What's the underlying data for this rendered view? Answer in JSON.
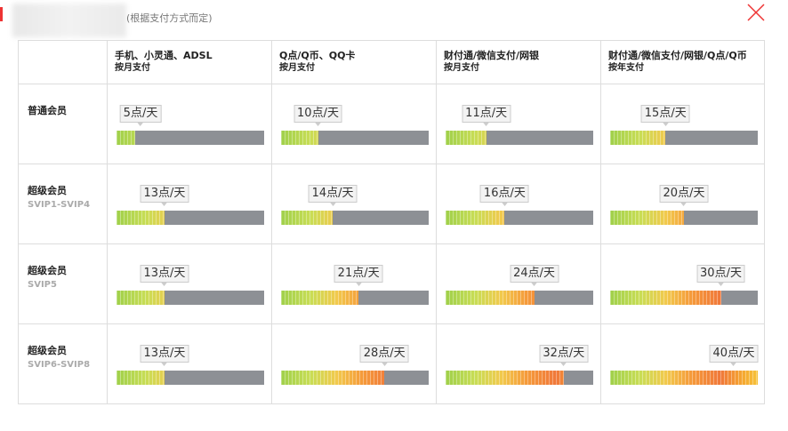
{
  "header": {
    "subtitle": "(根据支付方式而定)"
  },
  "table": {
    "columns": [
      {
        "name": "手机、小灵通、ADSL",
        "payment": "按月支付"
      },
      {
        "name": "Q点/Q币、QQ卡",
        "payment": "按月支付"
      },
      {
        "name": "财付通/微信支付/网银",
        "payment": "按月支付"
      },
      {
        "name": "财付通/微信支付/网银/Q点/Q币",
        "payment": "按年支付"
      }
    ],
    "rows": [
      {
        "name": "普通会员",
        "cells": [
          {
            "value": 5,
            "label": "5点/天"
          },
          {
            "value": 10,
            "label": "10点/天"
          },
          {
            "value": 11,
            "label": "11点/天"
          },
          {
            "value": 15,
            "label": "15点/天"
          }
        ]
      },
      {
        "name": "超级会员",
        "level": "SVIP1-SVIP4",
        "cells": [
          {
            "value": 13,
            "label": "13点/天"
          },
          {
            "value": 14,
            "label": "14点/天"
          },
          {
            "value": 16,
            "label": "16点/天"
          },
          {
            "value": 20,
            "label": "20点/天"
          }
        ]
      },
      {
        "name": "超级会员",
        "level": "SVIP5",
        "cells": [
          {
            "value": 13,
            "label": "13点/天"
          },
          {
            "value": 21,
            "label": "21点/天"
          },
          {
            "value": 24,
            "label": "24点/天"
          },
          {
            "value": 30,
            "label": "30点/天"
          }
        ]
      },
      {
        "name": "超级会员",
        "level": "SVIP6-SVIP8",
        "cells": [
          {
            "value": 13,
            "label": "13点/天"
          },
          {
            "value": 28,
            "label": "28点/天"
          },
          {
            "value": 32,
            "label": "32点/天"
          },
          {
            "value": 40,
            "label": "40点/天"
          }
        ]
      }
    ]
  }
}
